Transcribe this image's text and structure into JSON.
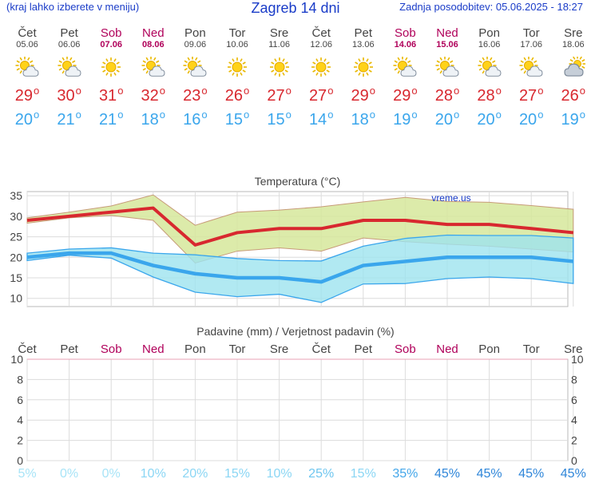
{
  "header": {
    "menu_hint": "(kraj lahko izberete v meniju)",
    "title": "Zagreb 14 dni",
    "updated": "Zadnja posodobitev: 05.06.2025 - 18:27"
  },
  "colors": {
    "max_temp": "#d8282f",
    "min_temp": "#3aa6ec",
    "weekend": "#b0005a",
    "max_band": "#d6e89b",
    "min_band": "#9ee3ef",
    "title": "#1a3cc8"
  },
  "days": [
    {
      "name": "Čet",
      "date": "05.06",
      "weekend": false,
      "icon": "sun-cloud-icon",
      "max": "29",
      "min": "20"
    },
    {
      "name": "Pet",
      "date": "06.06",
      "weekend": false,
      "icon": "sun-cloud-icon",
      "max": "30",
      "min": "21"
    },
    {
      "name": "Sob",
      "date": "07.06",
      "weekend": true,
      "icon": "sun-icon",
      "max": "31",
      "min": "21"
    },
    {
      "name": "Ned",
      "date": "08.06",
      "weekend": true,
      "icon": "sun-cloud-icon",
      "max": "32",
      "min": "18"
    },
    {
      "name": "Pon",
      "date": "09.06",
      "weekend": false,
      "icon": "sun-cloud-icon",
      "max": "23",
      "min": "16"
    },
    {
      "name": "Tor",
      "date": "10.06",
      "weekend": false,
      "icon": "sun-icon",
      "max": "26",
      "min": "15"
    },
    {
      "name": "Sre",
      "date": "11.06",
      "weekend": false,
      "icon": "sun-icon",
      "max": "27",
      "min": "15"
    },
    {
      "name": "Čet",
      "date": "12.06",
      "weekend": false,
      "icon": "sun-icon",
      "max": "27",
      "min": "14"
    },
    {
      "name": "Pet",
      "date": "13.06",
      "weekend": false,
      "icon": "sun-icon",
      "max": "29",
      "min": "18"
    },
    {
      "name": "Sob",
      "date": "14.06",
      "weekend": true,
      "icon": "sun-cloud-icon",
      "max": "29",
      "min": "19"
    },
    {
      "name": "Ned",
      "date": "15.06",
      "weekend": true,
      "icon": "sun-cloud-icon",
      "max": "28",
      "min": "20"
    },
    {
      "name": "Pon",
      "date": "16.06",
      "weekend": false,
      "icon": "sun-cloud-icon",
      "max": "28",
      "min": "20"
    },
    {
      "name": "Tor",
      "date": "17.06",
      "weekend": false,
      "icon": "sun-cloud-icon",
      "max": "27",
      "min": "20"
    },
    {
      "name": "Sre",
      "date": "18.06",
      "weekend": false,
      "icon": "cloud-sun-icon",
      "max": "26",
      "min": "19"
    }
  ],
  "chart_data": [
    {
      "type": "line",
      "title": "Temperatura (°C)",
      "watermark": "vreme.us",
      "categories": [
        "05.06",
        "06.06",
        "07.06",
        "08.06",
        "09.06",
        "10.06",
        "11.06",
        "12.06",
        "13.06",
        "14.06",
        "15.06",
        "16.06",
        "17.06",
        "18.06"
      ],
      "ylim": [
        8,
        36
      ],
      "yticks": [
        10,
        15,
        20,
        25,
        30,
        35
      ],
      "grid": true,
      "series": [
        {
          "key": "max",
          "values": [
            29,
            30,
            31,
            32,
            23,
            26,
            27,
            27,
            29,
            29,
            28,
            28,
            27,
            26
          ]
        },
        {
          "key": "max_band_upper",
          "values": [
            29.6,
            31,
            32.5,
            35.2,
            27.8,
            31,
            31.5,
            32.3,
            33.5,
            34.6,
            33.6,
            33.4,
            32.6,
            31.7
          ]
        },
        {
          "key": "max_band_lower",
          "values": [
            28.3,
            29.6,
            30.2,
            29,
            18.6,
            21.5,
            22.3,
            21.5,
            24.7,
            23.8,
            23.2,
            22.7,
            22,
            21.3
          ]
        },
        {
          "key": "min",
          "values": [
            20,
            21,
            21,
            18,
            16,
            15,
            15,
            14,
            18,
            19,
            20,
            20,
            20,
            19
          ]
        },
        {
          "key": "min_band_upper",
          "values": [
            21,
            22,
            22.3,
            21,
            20.6,
            19.7,
            19.2,
            19.1,
            22.7,
            24.6,
            25.4,
            25.3,
            25.3,
            24.7
          ]
        },
        {
          "key": "min_band_lower",
          "values": [
            19.2,
            20.5,
            19.8,
            15.2,
            11.5,
            10.4,
            11,
            9,
            13.5,
            13.6,
            14.8,
            15.2,
            14.8,
            13.6
          ]
        }
      ]
    },
    {
      "type": "bar",
      "title": "Padavine (mm) / Verjetnost padavin (%)",
      "categories": [
        "Čet",
        "Pet",
        "Sob",
        "Ned",
        "Pon",
        "Tor",
        "Sre",
        "Čet",
        "Pet",
        "Sob",
        "Ned",
        "Pon",
        "Tor",
        "Sre"
      ],
      "ylim": [
        0,
        10
      ],
      "yticks": [
        0,
        2,
        4,
        6,
        8,
        10
      ],
      "precipitation_mm": [
        0,
        0,
        0,
        0,
        0,
        0,
        0,
        0,
        0,
        0,
        0,
        0,
        0,
        0
      ],
      "probability_pct": [
        "5%",
        "0%",
        "0%",
        "10%",
        "20%",
        "15%",
        "10%",
        "25%",
        "15%",
        "35%",
        "45%",
        "45%",
        "45%",
        "45%"
      ]
    }
  ]
}
